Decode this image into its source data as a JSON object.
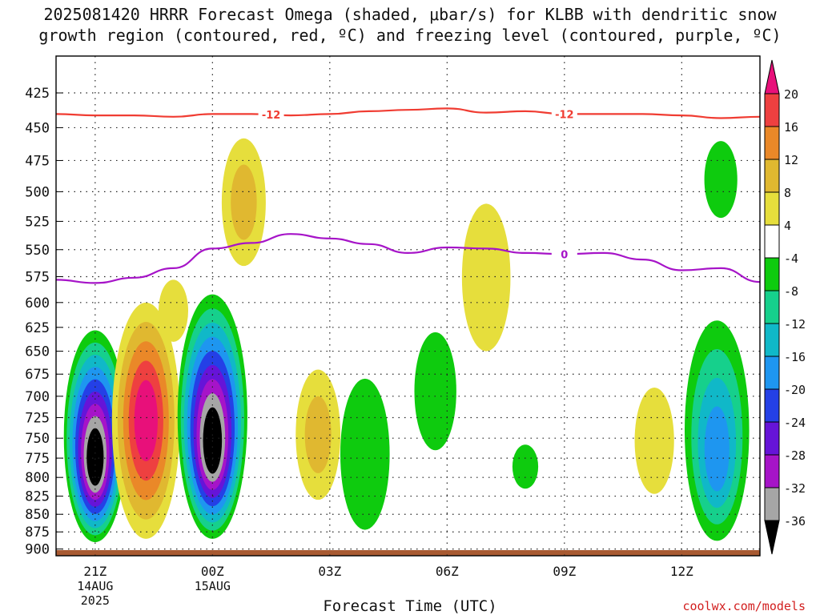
{
  "header": {
    "title_line1": "2025081420 HRRR Forecast Omega (shaded, μbar/s) for KLBB with dendritic snow",
    "title_line2": "growth region (contoured, red, ºC) and freezing level (contoured, purple, ºC)"
  },
  "credit": "coolwx.com/models",
  "chart_data": {
    "type": "heatmap",
    "title": "2025081420 HRRR Forecast Omega (shaded, μbar/s) for KLBB with dendritic snow growth region (contoured, red, ºC) and freezing level (contoured, purple, ºC)",
    "xlabel": "Forecast Time (UTC)",
    "ylabel": "",
    "x_ticks": [
      {
        "hour": 0,
        "label": "21Z",
        "sub": [
          "14AUG",
          "2025"
        ]
      },
      {
        "hour": 3,
        "label": "00Z",
        "sub": [
          "15AUG"
        ]
      },
      {
        "hour": 6,
        "label": "03Z",
        "sub": []
      },
      {
        "hour": 9,
        "label": "06Z",
        "sub": []
      },
      {
        "hour": 12,
        "label": "09Z",
        "sub": []
      },
      {
        "hour": 15,
        "label": "12Z",
        "sub": []
      }
    ],
    "xlim": [
      -1,
      17
    ],
    "ylim": [
      910,
      400
    ],
    "y_scale": "log-pressure",
    "y_ticks": [
      425,
      450,
      475,
      500,
      525,
      550,
      575,
      600,
      625,
      650,
      675,
      700,
      725,
      750,
      775,
      800,
      825,
      850,
      875,
      900
    ],
    "grid": true,
    "colorbar": {
      "labels": [
        "20",
        "16",
        "12",
        "8",
        "4",
        "-4",
        "-8",
        "-12",
        "-16",
        "-20",
        "-24",
        "-28",
        "-32",
        "-36"
      ],
      "top_color": "#e8107a",
      "bottom_color": "#000000",
      "bins": [
        {
          "range": [
            16,
            20
          ],
          "color": "#ee4040"
        },
        {
          "range": [
            12,
            16
          ],
          "color": "#ea8828"
        },
        {
          "range": [
            8,
            12
          ],
          "color": "#e0b830"
        },
        {
          "range": [
            4,
            8
          ],
          "color": "#e6de3c"
        },
        {
          "range": [
            -4,
            4
          ],
          "color": "#ffffff"
        },
        {
          "range": [
            -8,
            -4
          ],
          "color": "#0ecb0e"
        },
        {
          "range": [
            -12,
            -8
          ],
          "color": "#16d08c"
        },
        {
          "range": [
            -16,
            -12
          ],
          "color": "#10b8c8"
        },
        {
          "range": [
            -20,
            -16
          ],
          "color": "#1e96f0"
        },
        {
          "range": [
            -24,
            -20
          ],
          "color": "#2440e6"
        },
        {
          "range": [
            -28,
            -24
          ],
          "color": "#6614d8"
        },
        {
          "range": [
            -32,
            -28
          ],
          "color": "#a614c8"
        },
        {
          "range": [
            -36,
            -32
          ],
          "color": "#a6a6a6"
        }
      ]
    },
    "omega_cells": [
      {
        "hour": 0.0,
        "p_top": 628,
        "p_bot": 890,
        "peak": -38
      },
      {
        "hour": 1.3,
        "p_top": 600,
        "p_bot": 885,
        "peak": 22
      },
      {
        "hour": 2.0,
        "p_top": 578,
        "p_bot": 640,
        "peak": 5
      },
      {
        "hour": 3.0,
        "p_top": 592,
        "p_bot": 885,
        "peak": -38
      },
      {
        "hour": 3.8,
        "p_top": 458,
        "p_bot": 565,
        "peak": 8
      },
      {
        "hour": 5.7,
        "p_top": 670,
        "p_bot": 830,
        "peak": 10
      },
      {
        "hour": 6.9,
        "p_top": 680,
        "p_bot": 872,
        "peak": -6
      },
      {
        "hour": 8.7,
        "p_top": 630,
        "p_bot": 765,
        "peak": -6
      },
      {
        "hour": 10.0,
        "p_top": 510,
        "p_bot": 650,
        "peak": 6
      },
      {
        "hour": 11.0,
        "p_top": 758,
        "p_bot": 815,
        "peak": -6
      },
      {
        "hour": 14.3,
        "p_top": 690,
        "p_bot": 822,
        "peak": 6
      },
      {
        "hour": 15.9,
        "p_top": 618,
        "p_bot": 888,
        "peak": -18
      },
      {
        "hour": 16.0,
        "p_top": 460,
        "p_bot": 522,
        "peak": -6
      }
    ],
    "series": [
      {
        "name": "-12",
        "color": "#f03c32",
        "x": [
          -1,
          0,
          1,
          2,
          3,
          4,
          5,
          6,
          7,
          8,
          9,
          10,
          11,
          12,
          13,
          14,
          15,
          16,
          17
        ],
        "y": [
          440,
          441,
          441,
          442,
          440,
          440,
          441,
          440,
          438,
          437,
          436,
          439,
          438,
          440,
          440,
          440,
          441,
          443,
          442
        ],
        "labels_at_hours": [
          4.5,
          12
        ]
      },
      {
        "name": "0",
        "color": "#a614c8",
        "x": [
          -1,
          0,
          1,
          2,
          3,
          4,
          5,
          6,
          7,
          8,
          9,
          10,
          11,
          12,
          13,
          14,
          15,
          16,
          17
        ],
        "y": [
          578,
          581,
          576,
          567,
          549,
          544,
          536,
          540,
          545,
          553,
          548,
          549,
          553,
          554,
          553,
          559,
          569,
          567,
          580
        ],
        "labels_at_hours": [
          12
        ]
      }
    ],
    "surface_color": "#a85a32"
  }
}
